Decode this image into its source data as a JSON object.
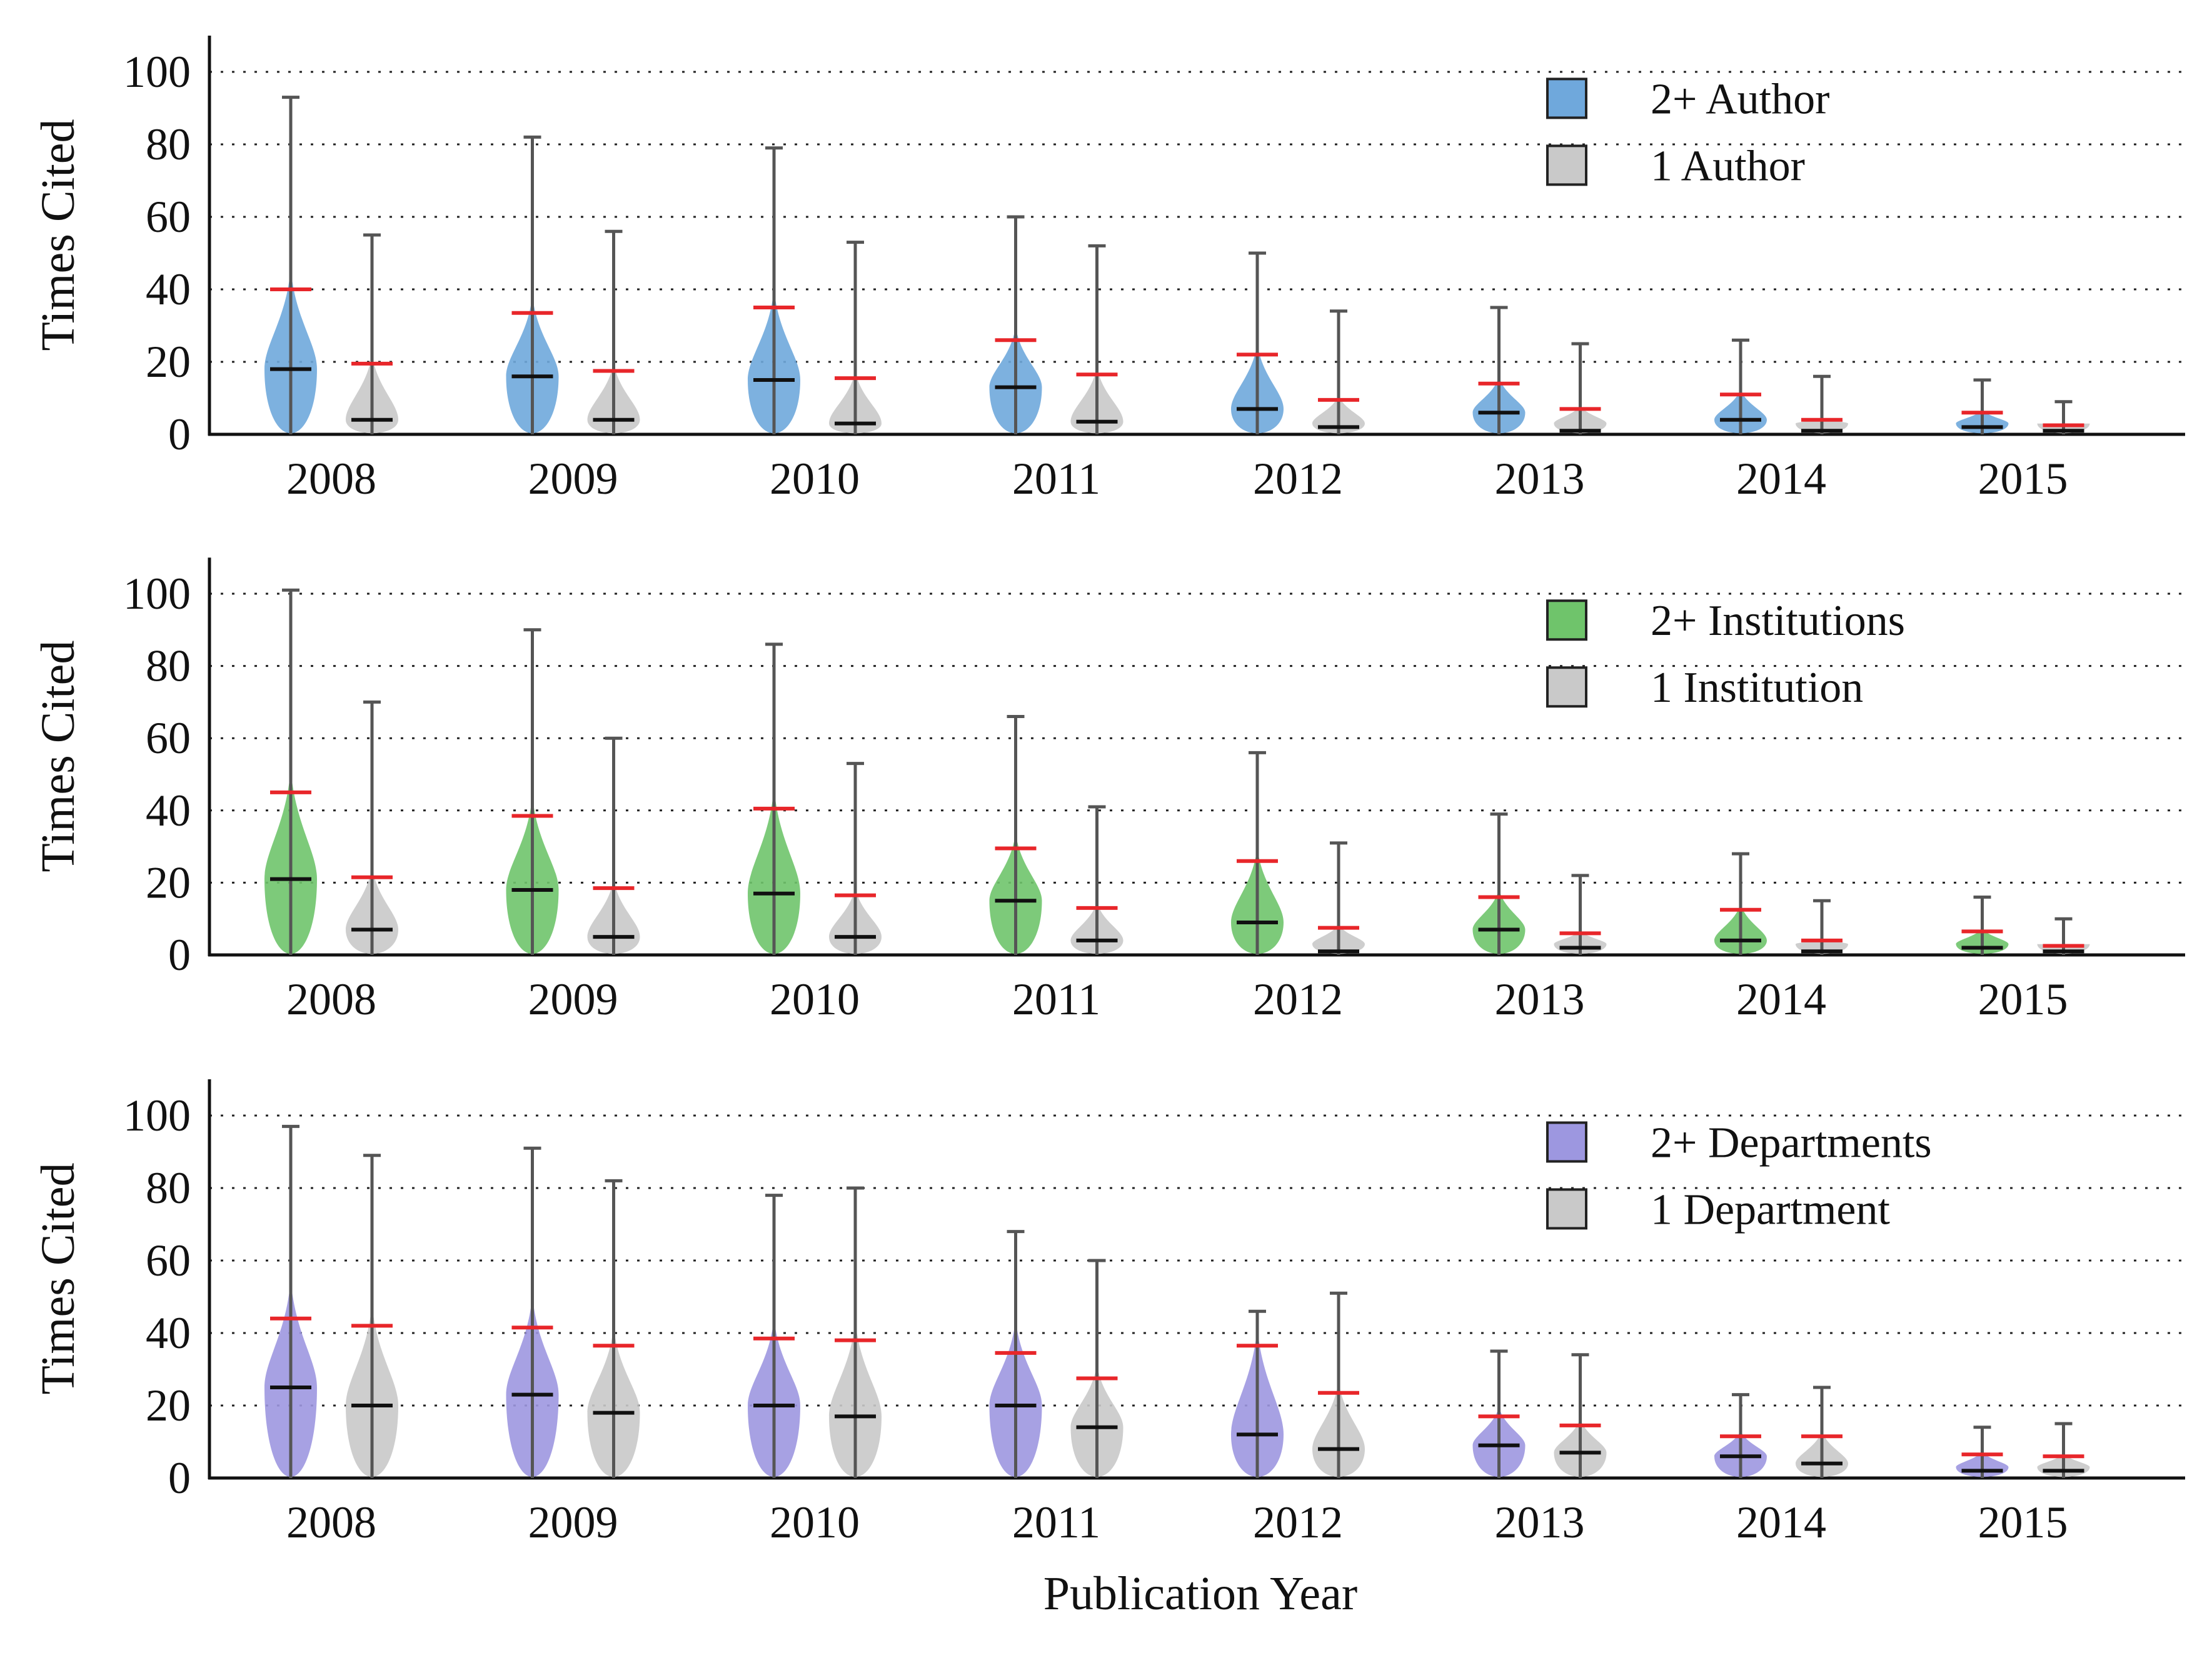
{
  "figure": {
    "xlabel": "Publication Year",
    "colors": {
      "mean_marker": "#e8262a",
      "median_marker": "#111111",
      "whisker": "#555555",
      "axis": "#111111",
      "grid": "#222222",
      "gray_fill": "#c9c9c9"
    }
  },
  "chart_data": [
    {
      "type": "violin",
      "ylabel": "Times Cited",
      "xlabel": "",
      "ylim": [
        0,
        110
      ],
      "yticks": [
        0,
        20,
        40,
        60,
        80,
        100
      ],
      "grid": "horizontal dotted",
      "legend_position": "top-right",
      "categories": [
        "2008",
        "2009",
        "2010",
        "2011",
        "2012",
        "2013",
        "2014",
        "2015"
      ],
      "series": [
        {
          "name": "2+ Author",
          "color": "#6fa8dc",
          "max": [
            93,
            82,
            79,
            60,
            50,
            35,
            26,
            15
          ],
          "mean": [
            40,
            33.5,
            35,
            26,
            22,
            14,
            11,
            6
          ],
          "median": [
            18,
            16,
            15,
            13,
            7,
            6,
            4,
            2
          ]
        },
        {
          "name": "1 Author",
          "color": "#c9c9c9",
          "max": [
            55,
            56,
            53,
            52,
            34,
            25,
            16,
            9
          ],
          "mean": [
            19.5,
            17.5,
            15.5,
            16.5,
            9.5,
            7,
            4,
            2.5
          ],
          "median": [
            4,
            4,
            3,
            3.5,
            2,
            1,
            1,
            1
          ]
        }
      ]
    },
    {
      "type": "violin",
      "ylabel": "Times Cited",
      "xlabel": "",
      "ylim": [
        0,
        110
      ],
      "yticks": [
        0,
        20,
        40,
        60,
        80,
        100
      ],
      "grid": "horizontal dotted",
      "legend_position": "top-right",
      "categories": [
        "2008",
        "2009",
        "2010",
        "2011",
        "2012",
        "2013",
        "2014",
        "2015"
      ],
      "series": [
        {
          "name": "2+ Institutions",
          "color": "#6fc46b",
          "max": [
            101,
            90,
            86,
            66,
            56,
            39,
            28,
            16
          ],
          "mean": [
            45,
            38.5,
            40.5,
            29.5,
            26,
            16,
            12.5,
            6.5
          ],
          "median": [
            21,
            18,
            17,
            15,
            9,
            7,
            4,
            2
          ]
        },
        {
          "name": "1 Institution",
          "color": "#c9c9c9",
          "max": [
            70,
            60,
            53,
            41,
            31,
            22,
            15,
            10
          ],
          "mean": [
            21.5,
            18.5,
            16.5,
            13,
            7.5,
            6,
            4,
            2.5
          ],
          "median": [
            7,
            5,
            5,
            4,
            1,
            2,
            1,
            1
          ]
        }
      ]
    },
    {
      "type": "violin",
      "ylabel": "Times Cited",
      "xlabel": "Publication Year",
      "ylim": [
        0,
        110
      ],
      "yticks": [
        0,
        20,
        40,
        60,
        80,
        100
      ],
      "grid": "horizontal dotted",
      "legend_position": "top-right",
      "categories": [
        "2008",
        "2009",
        "2010",
        "2011",
        "2012",
        "2013",
        "2014",
        "2015"
      ],
      "series": [
        {
          "name": "2+ Departments",
          "color": "#9d97e0",
          "max": [
            97,
            91,
            78,
            68,
            46,
            35,
            23,
            14
          ],
          "mean": [
            44,
            41.5,
            38.5,
            34.5,
            36.5,
            17,
            11.5,
            6.5
          ],
          "median": [
            25,
            23,
            20,
            20,
            12,
            9,
            6,
            2
          ]
        },
        {
          "name": "1 Department",
          "color": "#c9c9c9",
          "max": [
            89,
            82,
            80,
            60,
            51,
            34,
            25,
            15
          ],
          "mean": [
            42,
            36.5,
            38,
            27.5,
            23.5,
            14.5,
            11.5,
            6
          ],
          "median": [
            20,
            18,
            17,
            14,
            8,
            7,
            4,
            2
          ]
        }
      ]
    }
  ]
}
